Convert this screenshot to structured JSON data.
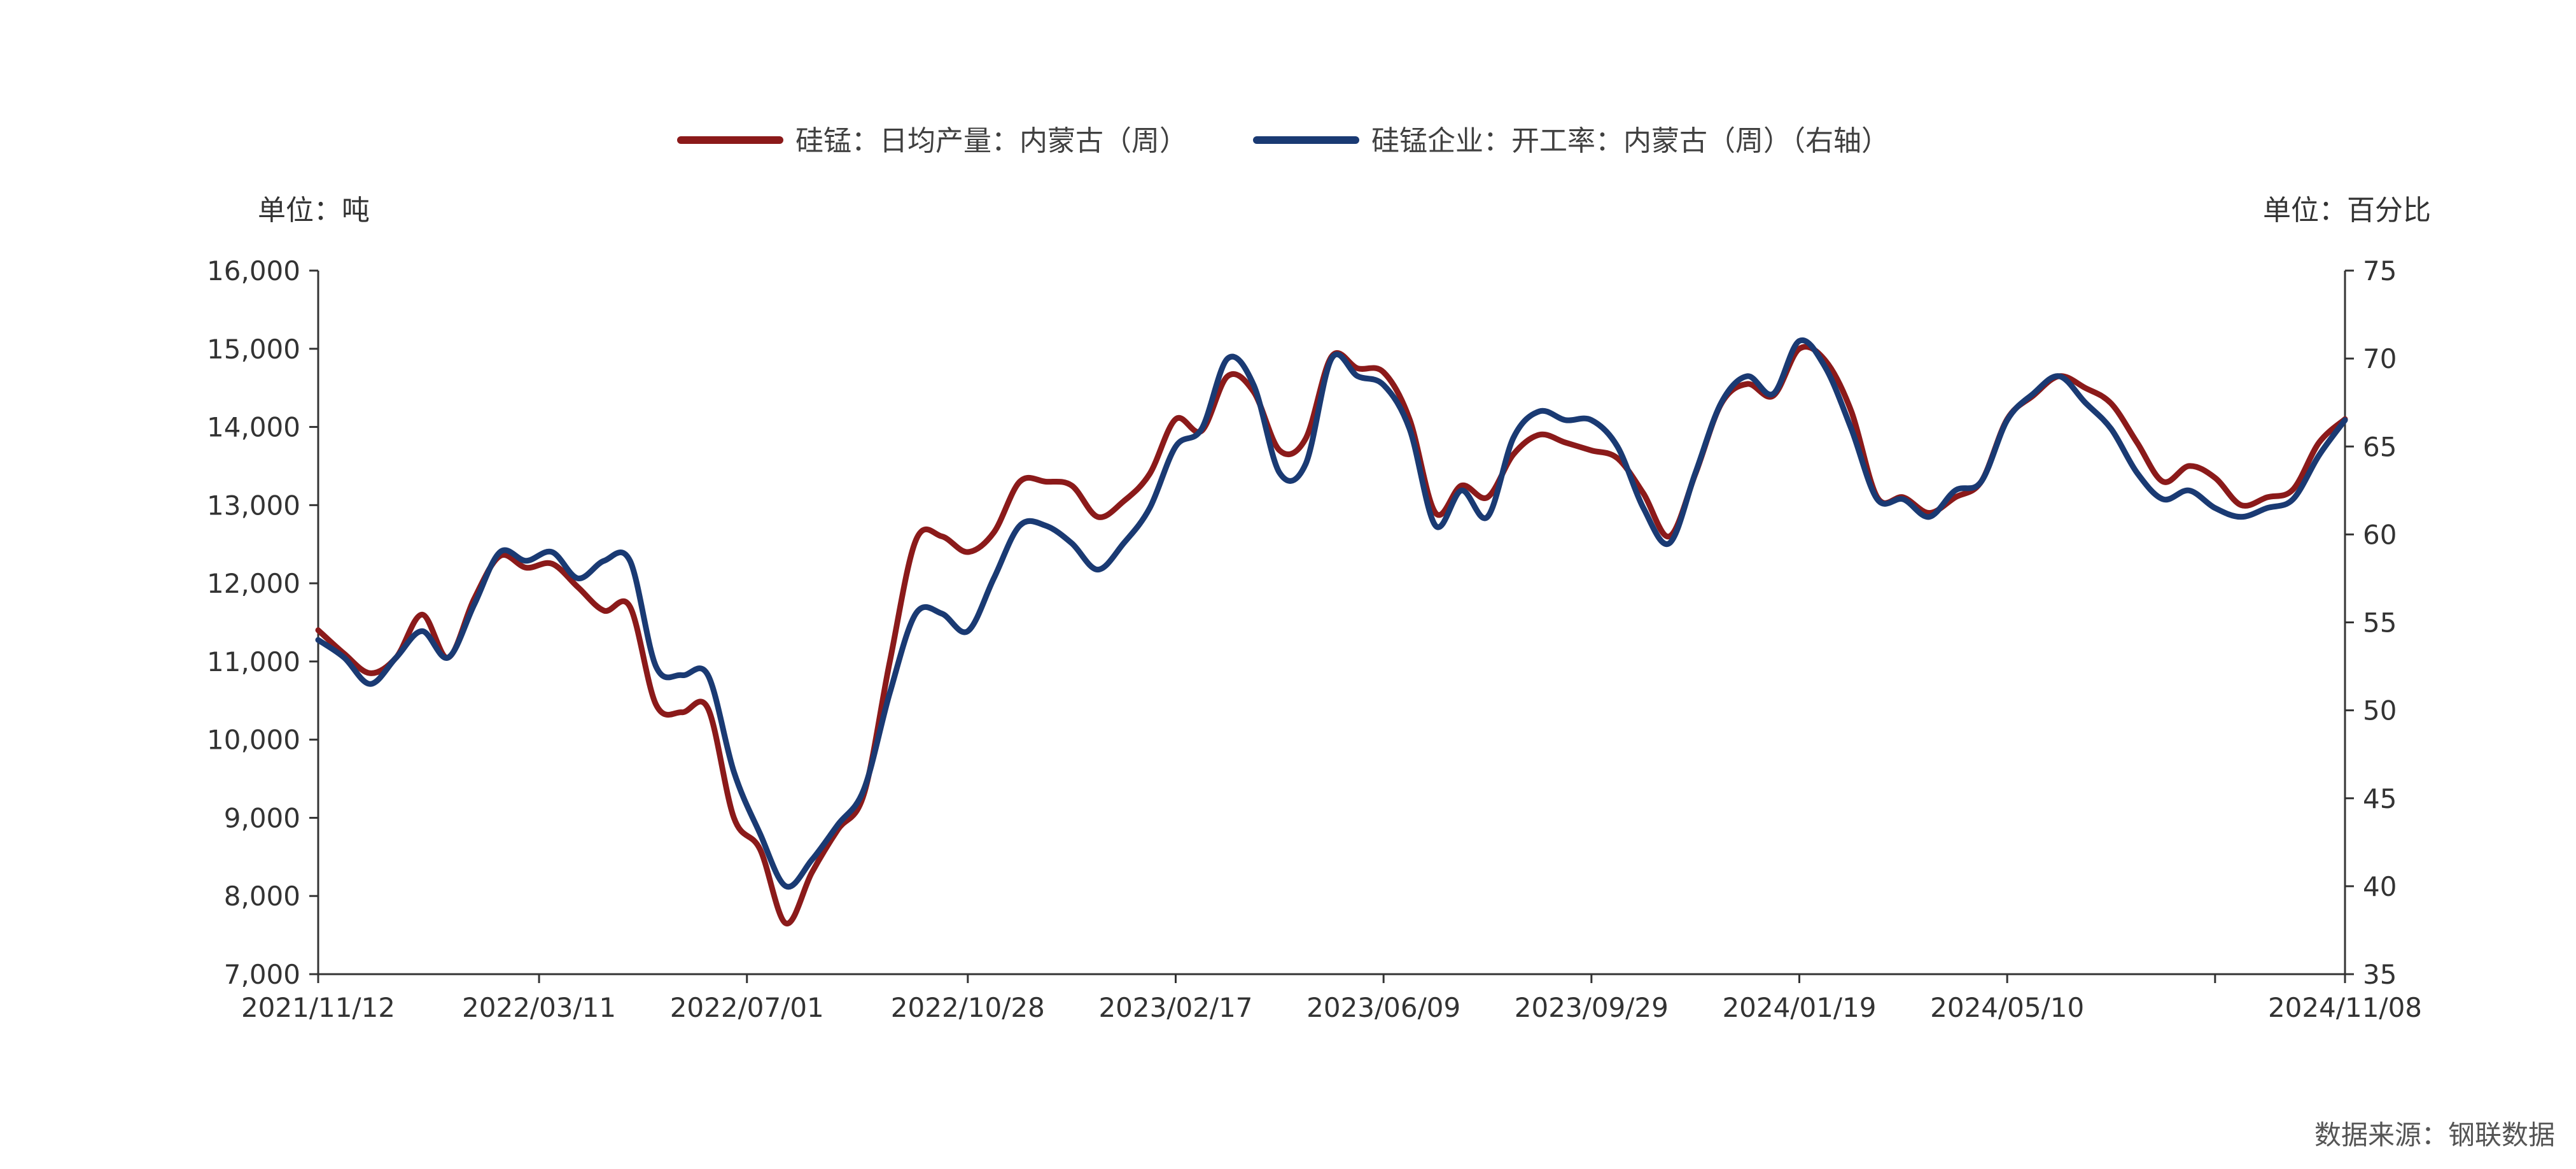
{
  "chart_data": {
    "type": "line",
    "legend": {
      "placement": "top-center"
    },
    "grid": false,
    "left_axis": {
      "unit_label": "单位：吨",
      "ylim": [
        7000,
        16000
      ],
      "ticks": [
        7000,
        8000,
        9000,
        10000,
        11000,
        12000,
        13000,
        14000,
        15000,
        16000
      ],
      "tick_labels": [
        "7,000",
        "8,000",
        "9,000",
        "10,000",
        "11,000",
        "12,000",
        "13,000",
        "14,000",
        "15,000",
        "16,000"
      ]
    },
    "right_axis": {
      "unit_label": "单位：百分比",
      "ylim": [
        35,
        75
      ],
      "ticks": [
        35,
        40,
        45,
        50,
        55,
        60,
        65,
        70,
        75
      ],
      "tick_labels": [
        "35",
        "40",
        "45",
        "50",
        "55",
        "60",
        "65",
        "70",
        "75"
      ]
    },
    "x_axis": {
      "range": [
        "2021-11-12",
        "2024-11-08"
      ],
      "ticks": [
        "2021-11-12",
        "2022-03-11",
        "2022-07-01",
        "2022-10-28",
        "2023-02-17",
        "2023-06-09",
        "2023-09-29",
        "2024-01-19",
        "2024-05-10",
        "2024-08-30",
        "2024-11-08"
      ],
      "tick_labels": [
        "2021/11/12",
        "2022/03/11",
        "2022/07/01",
        "2022/10/28",
        "2023/02/17",
        "2023/06/09",
        "2023/09/29",
        "2024/01/19",
        "2024/05/10",
        "",
        "2024/11/08"
      ]
    },
    "series": [
      {
        "name": "硅锰：日均产量：内蒙古（周）",
        "axis": "left",
        "color": "#8B1A1A",
        "x": [
          "2021-11-12",
          "2021-11-26",
          "2021-12-10",
          "2021-12-24",
          "2022-01-07",
          "2022-01-21",
          "2022-02-04",
          "2022-02-18",
          "2022-03-04",
          "2022-03-18",
          "2022-04-01",
          "2022-04-15",
          "2022-04-29",
          "2022-05-13",
          "2022-05-27",
          "2022-06-10",
          "2022-06-24",
          "2022-07-08",
          "2022-07-22",
          "2022-08-05",
          "2022-08-19",
          "2022-09-02",
          "2022-09-16",
          "2022-09-30",
          "2022-10-14",
          "2022-10-28",
          "2022-11-11",
          "2022-11-25",
          "2022-12-09",
          "2022-12-23",
          "2023-01-06",
          "2023-01-20",
          "2023-02-03",
          "2023-02-17",
          "2023-03-03",
          "2023-03-17",
          "2023-03-31",
          "2023-04-14",
          "2023-04-28",
          "2023-05-12",
          "2023-05-26",
          "2023-06-09",
          "2023-06-23",
          "2023-07-07",
          "2023-07-21",
          "2023-08-04",
          "2023-08-18",
          "2023-09-01",
          "2023-09-15",
          "2023-09-29",
          "2023-10-13",
          "2023-10-27",
          "2023-11-10",
          "2023-11-24",
          "2023-12-08",
          "2023-12-22",
          "2024-01-05",
          "2024-01-19",
          "2024-02-02",
          "2024-02-16",
          "2024-03-01",
          "2024-03-15",
          "2024-03-29",
          "2024-04-12",
          "2024-04-26",
          "2024-05-10",
          "2024-05-24",
          "2024-06-07",
          "2024-06-21",
          "2024-07-05",
          "2024-07-19",
          "2024-08-02",
          "2024-08-16",
          "2024-08-30",
          "2024-09-13",
          "2024-09-27",
          "2024-10-11",
          "2024-10-25",
          "2024-11-08"
        ],
        "values": [
          11400,
          11100,
          10850,
          11050,
          11600,
          11050,
          11800,
          12350,
          12200,
          12250,
          11950,
          11650,
          11700,
          10450,
          10350,
          10400,
          9000,
          8600,
          7650,
          8300,
          8850,
          9300,
          11000,
          12550,
          12600,
          12400,
          12650,
          13300,
          13300,
          13250,
          12850,
          13050,
          13400,
          14100,
          13950,
          14650,
          14450,
          13700,
          13850,
          14900,
          14750,
          14700,
          14100,
          12900,
          13250,
          13100,
          13650,
          13900,
          13800,
          13700,
          13600,
          13150,
          12600,
          13400,
          14300,
          14550,
          14400,
          15000,
          14850,
          14200,
          13100,
          13100,
          12900,
          13100,
          13300,
          14100,
          14400,
          14650,
          14500,
          14300,
          13800,
          13300,
          13500,
          13350,
          13000,
          13100,
          13200,
          13800,
          14100
        ]
      },
      {
        "name": "硅锰企业：开工率：内蒙古（周）（右轴）",
        "axis": "right",
        "color": "#1A3A73",
        "x": [
          "2021-11-12",
          "2021-11-26",
          "2021-12-10",
          "2021-12-24",
          "2022-01-07",
          "2022-01-21",
          "2022-02-04",
          "2022-02-18",
          "2022-03-04",
          "2022-03-18",
          "2022-04-01",
          "2022-04-15",
          "2022-04-29",
          "2022-05-13",
          "2022-05-27",
          "2022-06-10",
          "2022-06-24",
          "2022-07-08",
          "2022-07-22",
          "2022-08-05",
          "2022-08-19",
          "2022-09-02",
          "2022-09-16",
          "2022-09-30",
          "2022-10-14",
          "2022-10-28",
          "2022-11-11",
          "2022-11-25",
          "2022-12-09",
          "2022-12-23",
          "2023-01-06",
          "2023-01-20",
          "2023-02-03",
          "2023-02-17",
          "2023-03-03",
          "2023-03-17",
          "2023-03-31",
          "2023-04-14",
          "2023-04-28",
          "2023-05-12",
          "2023-05-26",
          "2023-06-09",
          "2023-06-23",
          "2023-07-07",
          "2023-07-21",
          "2023-08-04",
          "2023-08-18",
          "2023-09-01",
          "2023-09-15",
          "2023-09-29",
          "2023-10-13",
          "2023-10-27",
          "2023-11-10",
          "2023-11-24",
          "2023-12-08",
          "2023-12-22",
          "2024-01-05",
          "2024-01-19",
          "2024-02-02",
          "2024-02-16",
          "2024-03-01",
          "2024-03-15",
          "2024-03-29",
          "2024-04-12",
          "2024-04-26",
          "2024-05-10",
          "2024-05-24",
          "2024-06-07",
          "2024-06-21",
          "2024-07-05",
          "2024-07-19",
          "2024-08-02",
          "2024-08-16",
          "2024-08-30",
          "2024-09-13",
          "2024-09-27",
          "2024-10-11",
          "2024-10-25",
          "2024-11-08"
        ],
        "values": [
          54,
          53,
          51.5,
          53,
          54.5,
          53,
          56,
          59,
          58.5,
          59,
          57.5,
          58.5,
          58.5,
          52.5,
          52,
          52,
          46.5,
          43,
          40,
          41.5,
          43.5,
          45.5,
          51,
          55.5,
          55.5,
          54.5,
          57.5,
          60.5,
          60.5,
          59.5,
          58,
          59.5,
          61.5,
          65,
          66,
          70,
          68.5,
          63.5,
          64,
          70,
          69,
          68.5,
          66,
          60.5,
          62.5,
          61,
          65.5,
          67,
          66.5,
          66.5,
          65,
          61.5,
          59.5,
          63.5,
          67.5,
          69,
          68,
          71,
          69.5,
          66,
          62,
          62,
          61,
          62.5,
          63,
          66.5,
          68,
          69,
          67.5,
          66,
          63.5,
          62,
          62.5,
          61.5,
          61,
          61.5,
          62,
          64.5,
          66.5
        ]
      }
    ],
    "source_note": "数据来源：钢联数据"
  }
}
